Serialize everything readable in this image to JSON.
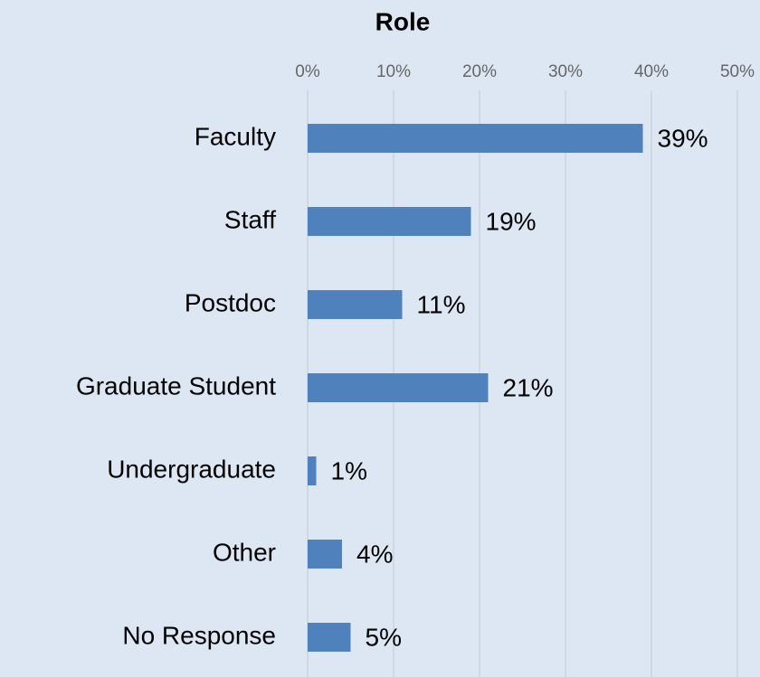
{
  "chart_data": {
    "type": "bar",
    "orientation": "horizontal",
    "title": "Role",
    "categories": [
      "Faculty",
      "Staff",
      "Postdoc",
      "Graduate Student",
      "Undergraduate",
      "Other",
      "No Response"
    ],
    "values": [
      39,
      19,
      11,
      21,
      1,
      4,
      5
    ],
    "value_labels": [
      "39%",
      "19%",
      "11%",
      "21%",
      "1%",
      "4%",
      "5%"
    ],
    "color": "#4f81bd",
    "xlim": [
      0,
      50
    ],
    "xticks": [
      {
        "value": 0,
        "label": "0%"
      },
      {
        "value": 10,
        "label": "10%"
      },
      {
        "value": 20,
        "label": "20%"
      },
      {
        "value": 30,
        "label": "30%"
      },
      {
        "value": 40,
        "label": "40%"
      },
      {
        "value": 50,
        "label": "50%"
      }
    ],
    "grid": true
  }
}
